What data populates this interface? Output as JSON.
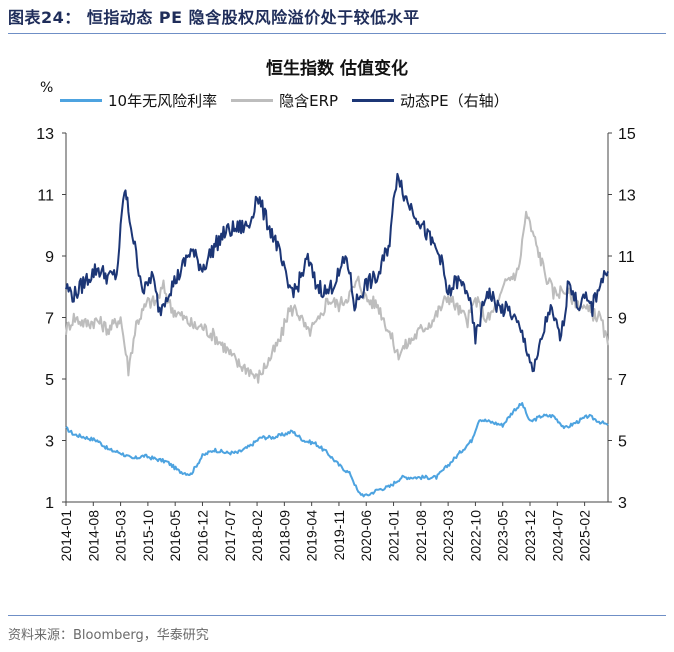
{
  "figure_title": "图表24： 恒指动态 PE 隐含股权风险溢价处于较低水平",
  "source": "资料来源：Bloomberg，华泰研究",
  "chart_data": {
    "type": "line",
    "title": "恒生指数 估值变化",
    "left_axis_unit": "%",
    "left_ylim": [
      1,
      13
    ],
    "left_yticks": [
      1,
      3,
      5,
      7,
      9,
      11,
      13
    ],
    "right_ylim": [
      3,
      15
    ],
    "right_yticks": [
      3,
      5,
      7,
      9,
      11,
      13,
      15
    ],
    "x_tick_labels": [
      "2014-01",
      "2014-08",
      "2015-03",
      "2015-10",
      "2016-05",
      "2016-12",
      "2017-07",
      "2018-02",
      "2018-09",
      "2019-04",
      "2019-11",
      "2020-06",
      "2021-01",
      "2021-08",
      "2022-03",
      "2022-10",
      "2023-05",
      "2023-12",
      "2024-07",
      "2025-02"
    ],
    "x_range": [
      "2014-01",
      "2025-08"
    ],
    "grid": false,
    "legend_position": "top",
    "series": [
      {
        "name": "10年无风险利率",
        "axis": "left",
        "color": "#4da3e0",
        "points": [
          [
            "2014-01",
            3.4
          ],
          [
            "2014-03",
            3.2
          ],
          [
            "2014-06",
            3.1
          ],
          [
            "2014-09",
            3.0
          ],
          [
            "2014-12",
            2.7
          ],
          [
            "2015-03",
            2.6
          ],
          [
            "2015-06",
            2.4
          ],
          [
            "2015-09",
            2.5
          ],
          [
            "2015-12",
            2.4
          ],
          [
            "2016-03",
            2.3
          ],
          [
            "2016-06",
            2.0
          ],
          [
            "2016-09",
            1.9
          ],
          [
            "2016-12",
            2.5
          ],
          [
            "2017-03",
            2.7
          ],
          [
            "2017-06",
            2.6
          ],
          [
            "2017-09",
            2.6
          ],
          [
            "2017-12",
            2.8
          ],
          [
            "2018-03",
            3.1
          ],
          [
            "2018-06",
            3.1
          ],
          [
            "2018-09",
            3.2
          ],
          [
            "2018-11",
            3.3
          ],
          [
            "2019-02",
            3.0
          ],
          [
            "2019-05",
            2.9
          ],
          [
            "2019-08",
            2.6
          ],
          [
            "2019-11",
            2.2
          ],
          [
            "2020-02",
            1.9
          ],
          [
            "2020-04",
            1.3
          ],
          [
            "2020-06",
            1.2
          ],
          [
            "2020-09",
            1.4
          ],
          [
            "2020-12",
            1.5
          ],
          [
            "2021-03",
            1.8
          ],
          [
            "2021-06",
            1.8
          ],
          [
            "2021-09",
            1.8
          ],
          [
            "2021-12",
            1.8
          ],
          [
            "2022-03",
            2.2
          ],
          [
            "2022-06",
            2.6
          ],
          [
            "2022-09",
            3.0
          ],
          [
            "2022-11",
            3.7
          ],
          [
            "2023-02",
            3.6
          ],
          [
            "2023-05",
            3.5
          ],
          [
            "2023-08",
            4.0
          ],
          [
            "2023-10",
            4.2
          ],
          [
            "2023-12",
            3.6
          ],
          [
            "2024-03",
            3.8
          ],
          [
            "2024-06",
            3.8
          ],
          [
            "2024-09",
            3.4
          ],
          [
            "2024-12",
            3.6
          ],
          [
            "2025-03",
            3.8
          ],
          [
            "2025-06",
            3.6
          ],
          [
            "2025-08",
            3.5
          ]
        ]
      },
      {
        "name": "隐含ERP",
        "axis": "left",
        "color": "#bdbdbd",
        "points": [
          [
            "2014-01",
            6.6
          ],
          [
            "2014-03",
            7.0
          ],
          [
            "2014-06",
            6.8
          ],
          [
            "2014-09",
            6.9
          ],
          [
            "2014-12",
            6.6
          ],
          [
            "2015-03",
            7.0
          ],
          [
            "2015-05",
            5.3
          ],
          [
            "2015-07",
            6.8
          ],
          [
            "2015-10",
            7.5
          ],
          [
            "2015-12",
            7.5
          ],
          [
            "2016-02",
            8.0
          ],
          [
            "2016-04",
            7.3
          ],
          [
            "2016-07",
            7.0
          ],
          [
            "2016-10",
            6.7
          ],
          [
            "2016-12",
            6.7
          ],
          [
            "2017-03",
            6.4
          ],
          [
            "2017-06",
            6.0
          ],
          [
            "2017-09",
            5.5
          ],
          [
            "2017-12",
            5.3
          ],
          [
            "2018-02",
            5.0
          ],
          [
            "2018-05",
            5.6
          ],
          [
            "2018-08",
            6.3
          ],
          [
            "2018-10",
            7.2
          ],
          [
            "2018-12",
            7.3
          ],
          [
            "2019-03",
            6.5
          ],
          [
            "2019-06",
            6.9
          ],
          [
            "2019-08",
            7.6
          ],
          [
            "2019-11",
            7.4
          ],
          [
            "2020-02",
            7.8
          ],
          [
            "2020-04",
            8.2
          ],
          [
            "2020-06",
            7.6
          ],
          [
            "2020-09",
            7.4
          ],
          [
            "2020-12",
            6.5
          ],
          [
            "2021-02",
            5.8
          ],
          [
            "2021-05",
            6.2
          ],
          [
            "2021-08",
            6.6
          ],
          [
            "2021-11",
            6.9
          ],
          [
            "2022-03",
            7.7
          ],
          [
            "2022-06",
            7.2
          ],
          [
            "2022-08",
            6.9
          ],
          [
            "2022-10",
            7.6
          ],
          [
            "2023-01",
            6.9
          ],
          [
            "2023-04",
            7.5
          ],
          [
            "2023-06",
            8.2
          ],
          [
            "2023-09",
            8.5
          ],
          [
            "2023-11",
            10.4
          ],
          [
            "2024-01",
            9.6
          ],
          [
            "2024-04",
            8.4
          ],
          [
            "2024-06",
            7.8
          ],
          [
            "2024-09",
            7.9
          ],
          [
            "2024-12",
            7.5
          ],
          [
            "2025-03",
            7.2
          ],
          [
            "2025-06",
            7.0
          ],
          [
            "2025-08",
            6.1
          ]
        ]
      },
      {
        "name": "动态PE（右轴）",
        "axis": "right",
        "color": "#1c3676",
        "points": [
          [
            "2014-01",
            10.0
          ],
          [
            "2014-03",
            9.7
          ],
          [
            "2014-06",
            10.2
          ],
          [
            "2014-09",
            10.6
          ],
          [
            "2014-12",
            10.3
          ],
          [
            "2015-02",
            10.4
          ],
          [
            "2015-04",
            13.2
          ],
          [
            "2015-05",
            12.5
          ],
          [
            "2015-07",
            11.0
          ],
          [
            "2015-09",
            9.8
          ],
          [
            "2015-11",
            10.4
          ],
          [
            "2016-01",
            9.2
          ],
          [
            "2016-03",
            9.8
          ],
          [
            "2016-06",
            10.4
          ],
          [
            "2016-09",
            11.2
          ],
          [
            "2016-12",
            10.6
          ],
          [
            "2017-03",
            11.3
          ],
          [
            "2017-06",
            11.8
          ],
          [
            "2017-09",
            11.9
          ],
          [
            "2017-12",
            12.0
          ],
          [
            "2018-02",
            13.0
          ],
          [
            "2018-04",
            12.3
          ],
          [
            "2018-07",
            11.4
          ],
          [
            "2018-10",
            10.0
          ],
          [
            "2018-12",
            9.9
          ],
          [
            "2019-03",
            10.9
          ],
          [
            "2019-05",
            10.1
          ],
          [
            "2019-08",
            9.8
          ],
          [
            "2019-11",
            10.4
          ],
          [
            "2020-01",
            11.0
          ],
          [
            "2020-03",
            9.4
          ],
          [
            "2020-06",
            10.1
          ],
          [
            "2020-09",
            10.3
          ],
          [
            "2020-12",
            11.5
          ],
          [
            "2021-02",
            13.8
          ],
          [
            "2021-04",
            12.9
          ],
          [
            "2021-07",
            12.3
          ],
          [
            "2021-10",
            11.6
          ],
          [
            "2022-01",
            11.0
          ],
          [
            "2022-03",
            9.7
          ],
          [
            "2022-05",
            10.2
          ],
          [
            "2022-08",
            9.9
          ],
          [
            "2022-10",
            8.3
          ],
          [
            "2023-01",
            9.9
          ],
          [
            "2023-04",
            9.3
          ],
          [
            "2023-07",
            9.2
          ],
          [
            "2023-09",
            8.7
          ],
          [
            "2023-11",
            8.1
          ],
          [
            "2024-01",
            7.2
          ],
          [
            "2024-03",
            8.3
          ],
          [
            "2024-05",
            9.3
          ],
          [
            "2024-08",
            8.3
          ],
          [
            "2024-10",
            10.3
          ],
          [
            "2024-12",
            9.4
          ],
          [
            "2025-02",
            9.6
          ],
          [
            "2025-04",
            9.3
          ],
          [
            "2025-06",
            10.2
          ],
          [
            "2025-08",
            10.5
          ]
        ]
      }
    ]
  }
}
